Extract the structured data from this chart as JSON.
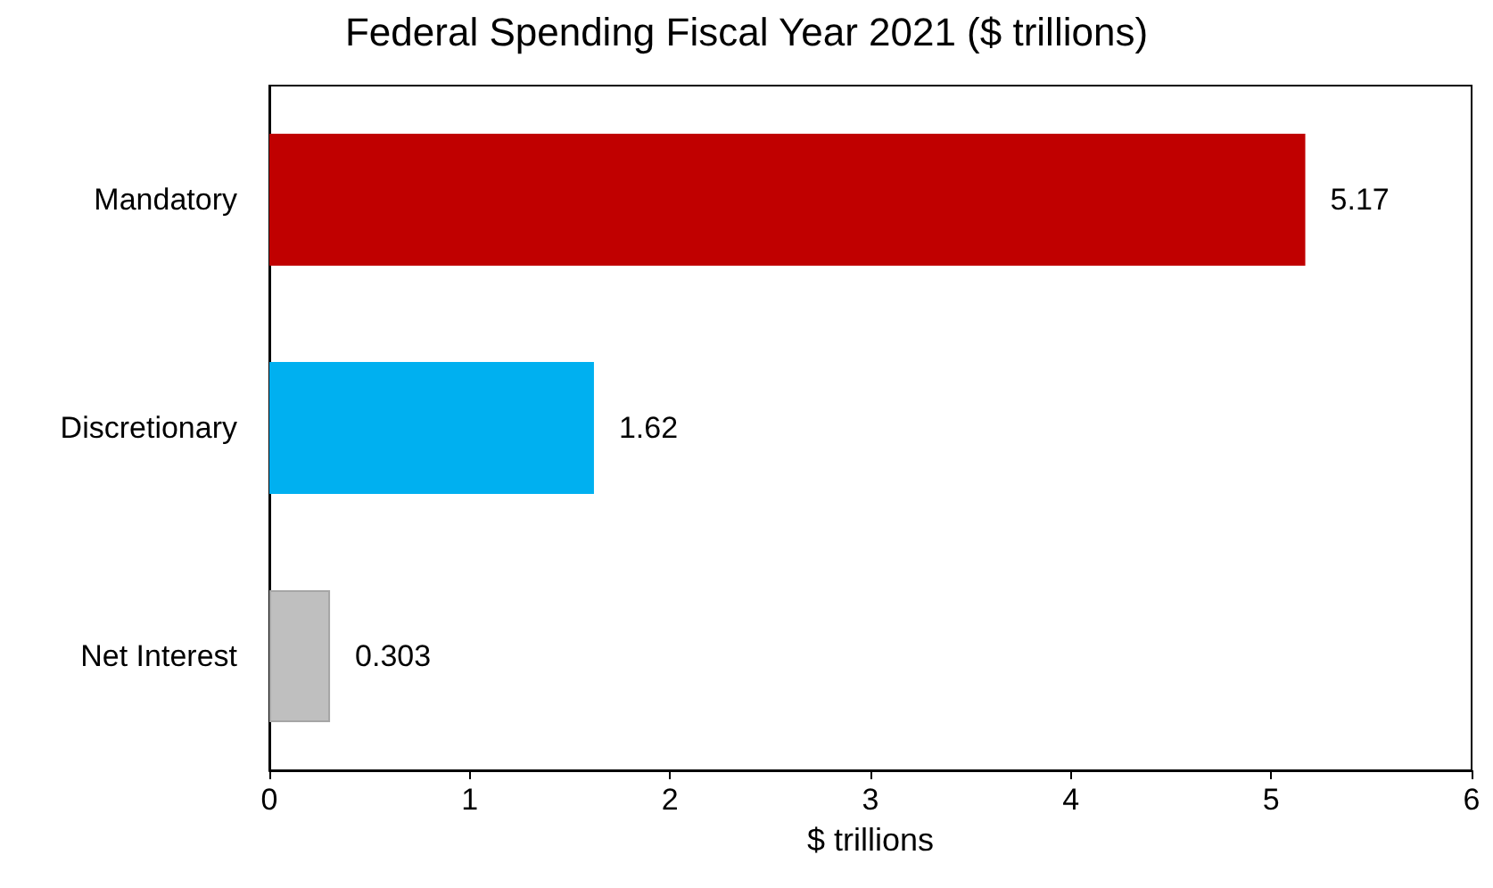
{
  "chart_data": {
    "type": "bar",
    "orientation": "horizontal",
    "title": "Federal Spending Fiscal Year 2021 ($ trillions)",
    "xlabel": "$ trillions",
    "categories": [
      "Mandatory",
      "Discretionary",
      "Net Interest"
    ],
    "values": [
      5.17,
      1.62,
      0.303
    ],
    "colors": [
      "#c00000",
      "#00b0f0",
      "#bfbfbf"
    ],
    "xlim": [
      0,
      6
    ],
    "xticks": [
      0,
      1,
      2,
      3,
      4,
      5,
      6
    ],
    "grid": false,
    "data_labels": true
  }
}
